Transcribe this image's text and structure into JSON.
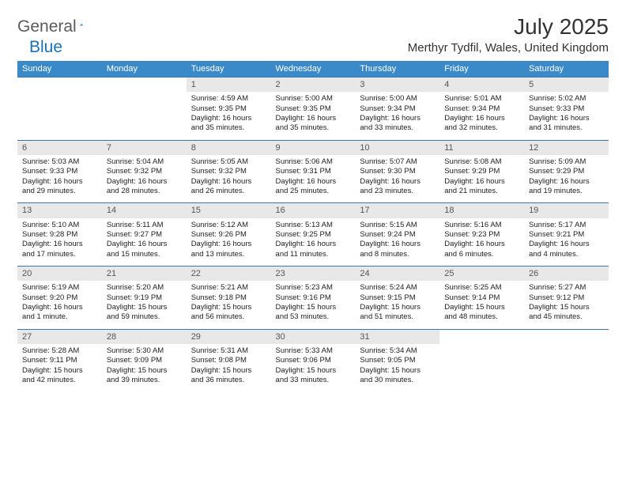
{
  "logo": {
    "general": "General",
    "blue": "Blue"
  },
  "title": "July 2025",
  "location": "Merthyr Tydfil, Wales, United Kingdom",
  "palette": {
    "header_bg": "#3a89c9",
    "header_text": "#ffffff",
    "daynum_bg": "#e8e8e8",
    "row_border": "#3a77a8",
    "body_text": "#222222",
    "title_text": "#333333",
    "logo_gray": "#5b5b5b",
    "logo_blue": "#1c70b8"
  },
  "day_headers": [
    "Sunday",
    "Monday",
    "Tuesday",
    "Wednesday",
    "Thursday",
    "Friday",
    "Saturday"
  ],
  "weeks": [
    [
      null,
      null,
      {
        "n": "1",
        "sr": "4:59 AM",
        "ss": "9:35 PM",
        "dl": "16 hours and 35 minutes."
      },
      {
        "n": "2",
        "sr": "5:00 AM",
        "ss": "9:35 PM",
        "dl": "16 hours and 35 minutes."
      },
      {
        "n": "3",
        "sr": "5:00 AM",
        "ss": "9:34 PM",
        "dl": "16 hours and 33 minutes."
      },
      {
        "n": "4",
        "sr": "5:01 AM",
        "ss": "9:34 PM",
        "dl": "16 hours and 32 minutes."
      },
      {
        "n": "5",
        "sr": "5:02 AM",
        "ss": "9:33 PM",
        "dl": "16 hours and 31 minutes."
      }
    ],
    [
      {
        "n": "6",
        "sr": "5:03 AM",
        "ss": "9:33 PM",
        "dl": "16 hours and 29 minutes."
      },
      {
        "n": "7",
        "sr": "5:04 AM",
        "ss": "9:32 PM",
        "dl": "16 hours and 28 minutes."
      },
      {
        "n": "8",
        "sr": "5:05 AM",
        "ss": "9:32 PM",
        "dl": "16 hours and 26 minutes."
      },
      {
        "n": "9",
        "sr": "5:06 AM",
        "ss": "9:31 PM",
        "dl": "16 hours and 25 minutes."
      },
      {
        "n": "10",
        "sr": "5:07 AM",
        "ss": "9:30 PM",
        "dl": "16 hours and 23 minutes."
      },
      {
        "n": "11",
        "sr": "5:08 AM",
        "ss": "9:29 PM",
        "dl": "16 hours and 21 minutes."
      },
      {
        "n": "12",
        "sr": "5:09 AM",
        "ss": "9:29 PM",
        "dl": "16 hours and 19 minutes."
      }
    ],
    [
      {
        "n": "13",
        "sr": "5:10 AM",
        "ss": "9:28 PM",
        "dl": "16 hours and 17 minutes."
      },
      {
        "n": "14",
        "sr": "5:11 AM",
        "ss": "9:27 PM",
        "dl": "16 hours and 15 minutes."
      },
      {
        "n": "15",
        "sr": "5:12 AM",
        "ss": "9:26 PM",
        "dl": "16 hours and 13 minutes."
      },
      {
        "n": "16",
        "sr": "5:13 AM",
        "ss": "9:25 PM",
        "dl": "16 hours and 11 minutes."
      },
      {
        "n": "17",
        "sr": "5:15 AM",
        "ss": "9:24 PM",
        "dl": "16 hours and 8 minutes."
      },
      {
        "n": "18",
        "sr": "5:16 AM",
        "ss": "9:23 PM",
        "dl": "16 hours and 6 minutes."
      },
      {
        "n": "19",
        "sr": "5:17 AM",
        "ss": "9:21 PM",
        "dl": "16 hours and 4 minutes."
      }
    ],
    [
      {
        "n": "20",
        "sr": "5:19 AM",
        "ss": "9:20 PM",
        "dl": "16 hours and 1 minute."
      },
      {
        "n": "21",
        "sr": "5:20 AM",
        "ss": "9:19 PM",
        "dl": "15 hours and 59 minutes."
      },
      {
        "n": "22",
        "sr": "5:21 AM",
        "ss": "9:18 PM",
        "dl": "15 hours and 56 minutes."
      },
      {
        "n": "23",
        "sr": "5:23 AM",
        "ss": "9:16 PM",
        "dl": "15 hours and 53 minutes."
      },
      {
        "n": "24",
        "sr": "5:24 AM",
        "ss": "9:15 PM",
        "dl": "15 hours and 51 minutes."
      },
      {
        "n": "25",
        "sr": "5:25 AM",
        "ss": "9:14 PM",
        "dl": "15 hours and 48 minutes."
      },
      {
        "n": "26",
        "sr": "5:27 AM",
        "ss": "9:12 PM",
        "dl": "15 hours and 45 minutes."
      }
    ],
    [
      {
        "n": "27",
        "sr": "5:28 AM",
        "ss": "9:11 PM",
        "dl": "15 hours and 42 minutes."
      },
      {
        "n": "28",
        "sr": "5:30 AM",
        "ss": "9:09 PM",
        "dl": "15 hours and 39 minutes."
      },
      {
        "n": "29",
        "sr": "5:31 AM",
        "ss": "9:08 PM",
        "dl": "15 hours and 36 minutes."
      },
      {
        "n": "30",
        "sr": "5:33 AM",
        "ss": "9:06 PM",
        "dl": "15 hours and 33 minutes."
      },
      {
        "n": "31",
        "sr": "5:34 AM",
        "ss": "9:05 PM",
        "dl": "15 hours and 30 minutes."
      },
      null,
      null
    ]
  ],
  "labels": {
    "sunrise": "Sunrise: ",
    "sunset": "Sunset: ",
    "daylight": "Daylight: "
  }
}
